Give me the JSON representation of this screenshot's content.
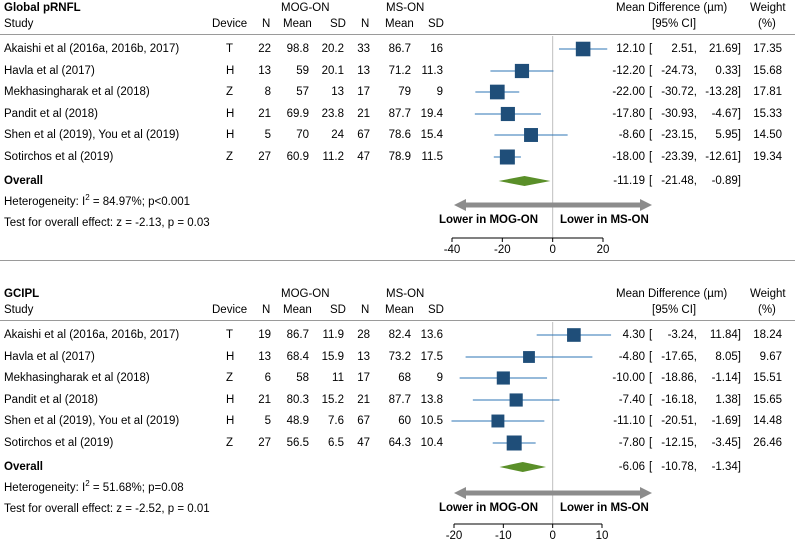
{
  "chart_data": [
    {
      "type": "forest",
      "title": "Global pRNFL",
      "group_a": "MOG-ON",
      "group_b": "MS-ON",
      "columns": {
        "study": "Study",
        "device": "Device",
        "n": "N",
        "mean": "Mean",
        "sd": "SD",
        "md_header": "Mean Difference (µm)",
        "ci_header": "[95% CI]",
        "weight_header": "Weight",
        "weight_unit": "(%)"
      },
      "studies": [
        {
          "study": "Akaishi et al (2016a, 2016b, 2017)",
          "device": "T",
          "n1": "22",
          "mean1": "98.8",
          "sd1": "20.2",
          "n2": "33",
          "mean2": "86.7",
          "sd2": "16",
          "md": 12.1,
          "lo": 2.51,
          "hi": 21.69,
          "md_text": "12.10",
          "lo_text": "2.51,",
          "hi_text": "21.69]",
          "weight": "17.35"
        },
        {
          "study": "Havla et al (2017)",
          "device": "H",
          "n1": "13",
          "mean1": "59",
          "sd1": "20.1",
          "n2": "13",
          "mean2": "71.2",
          "sd2": "11.3",
          "md": -12.2,
          "lo": -24.73,
          "hi": 0.33,
          "md_text": "-12.20",
          "lo_text": "-24.73,",
          "hi_text": "0.33]",
          "weight": "15.68"
        },
        {
          "study": "Mekhasingharak et al (2018)",
          "device": "Z",
          "n1": "8",
          "mean1": "57",
          "sd1": "13",
          "n2": "17",
          "mean2": "79",
          "sd2": "9",
          "md": -22.0,
          "lo": -30.72,
          "hi": -13.28,
          "md_text": "-22.00",
          "lo_text": "-30.72,",
          "hi_text": "-13.28]",
          "weight": "17.81"
        },
        {
          "study": "Pandit et al (2018)",
          "device": "H",
          "n1": "21",
          "mean1": "69.9",
          "sd1": "23.8",
          "n2": "21",
          "mean2": "87.7",
          "sd2": "19.4",
          "md": -17.8,
          "lo": -30.93,
          "hi": -4.67,
          "md_text": "-17.80",
          "lo_text": "-30.93,",
          "hi_text": "-4.67]",
          "weight": "15.33"
        },
        {
          "study": "Shen et al (2019), You et al (2019)",
          "device": "H",
          "n1": "5",
          "mean1": "70",
          "sd1": "24",
          "n2": "67",
          "mean2": "78.6",
          "sd2": "15.4",
          "md": -8.6,
          "lo": -23.15,
          "hi": 5.95,
          "md_text": "-8.60",
          "lo_text": "-23.15,",
          "hi_text": "5.95]",
          "weight": "14.50"
        },
        {
          "study": "Sotirchos et al (2019)",
          "device": "Z",
          "n1": "27",
          "mean1": "60.9",
          "sd1": "11.2",
          "n2": "47",
          "mean2": "78.9",
          "sd2": "11.5",
          "md": -18.0,
          "lo": -23.39,
          "hi": -12.61,
          "md_text": "-18.00",
          "lo_text": "-23.39,",
          "hi_text": "-12.61]",
          "weight": "19.34"
        }
      ],
      "overall": {
        "label": "Overall",
        "md": -11.19,
        "lo": -21.48,
        "hi": -0.89,
        "md_text": "-11.19",
        "lo_text": "-21.48,",
        "hi_text": "-0.89]"
      },
      "heterogeneity_prefix": "Heterogeneity: I",
      "heterogeneity_sup": "2",
      "heterogeneity_rest": " = 84.97%; p<0.001",
      "test_overall": "Test for overall effect: z = -2.13, p = 0.03",
      "arrow_left_label": "Lower in MOG-ON",
      "arrow_right_label": "Lower in MS-ON",
      "xlim": [
        -40,
        20
      ],
      "xticks": [
        -40,
        -20,
        0,
        20
      ]
    },
    {
      "type": "forest",
      "title": "GCIPL",
      "group_a": "MOG-ON",
      "group_b": "MS-ON",
      "columns": {
        "study": "Study",
        "device": "Device",
        "n": "N",
        "mean": "Mean",
        "sd": "SD",
        "md_header": "Mean Difference (µm)",
        "ci_header": "[95% CI]",
        "weight_header": "Weight",
        "weight_unit": "(%)"
      },
      "studies": [
        {
          "study": "Akaishi et al (2016a, 2016b, 2017)",
          "device": "T",
          "n1": "19",
          "mean1": "86.7",
          "sd1": "11.9",
          "n2": "28",
          "mean2": "82.4",
          "sd2": "13.6",
          "md": 4.3,
          "lo": -3.24,
          "hi": 11.84,
          "md_text": "4.30",
          "lo_text": "-3.24,",
          "hi_text": "11.84]",
          "weight": "18.24"
        },
        {
          "study": "Havla et al (2017)",
          "device": "H",
          "n1": "13",
          "mean1": "68.4",
          "sd1": "15.9",
          "n2": "13",
          "mean2": "73.2",
          "sd2": "17.5",
          "md": -4.8,
          "lo": -17.65,
          "hi": 8.05,
          "md_text": "-4.80",
          "lo_text": "-17.65,",
          "hi_text": "8.05]",
          "weight": "9.67"
        },
        {
          "study": "Mekhasingharak et al (2018)",
          "device": "Z",
          "n1": "6",
          "mean1": "58",
          "sd1": "11",
          "n2": "17",
          "mean2": "68",
          "sd2": "9",
          "md": -10.0,
          "lo": -18.86,
          "hi": -1.14,
          "md_text": "-10.00",
          "lo_text": "-18.86,",
          "hi_text": "-1.14]",
          "weight": "15.51"
        },
        {
          "study": "Pandit et al (2018)",
          "device": "H",
          "n1": "21",
          "mean1": "80.3",
          "sd1": "15.2",
          "n2": "21",
          "mean2": "87.7",
          "sd2": "13.8",
          "md": -7.4,
          "lo": -16.18,
          "hi": 1.38,
          "md_text": "-7.40",
          "lo_text": "-16.18,",
          "hi_text": "1.38]",
          "weight": "15.65"
        },
        {
          "study": "Shen et al (2019), You et al (2019)",
          "device": "H",
          "n1": "5",
          "mean1": "48.9",
          "sd1": "7.6",
          "n2": "67",
          "mean2": "60",
          "sd2": "10.5",
          "md": -11.1,
          "lo": -20.51,
          "hi": -1.69,
          "md_text": "-11.10",
          "lo_text": "-20.51,",
          "hi_text": "-1.69]",
          "weight": "14.48"
        },
        {
          "study": "Sotirchos et al (2019)",
          "device": "Z",
          "n1": "27",
          "mean1": "56.5",
          "sd1": "6.5",
          "n2": "47",
          "mean2": "64.3",
          "sd2": "10.4",
          "md": -7.8,
          "lo": -12.15,
          "hi": -3.45,
          "md_text": "-7.80",
          "lo_text": "-12.15,",
          "hi_text": "-3.45]",
          "weight": "26.46"
        }
      ],
      "overall": {
        "label": "Overall",
        "md": -6.06,
        "lo": -10.78,
        "hi": -1.34,
        "md_text": "-6.06",
        "lo_text": "-10.78,",
        "hi_text": "-1.34]"
      },
      "heterogeneity_prefix": "Heterogeneity: I",
      "heterogeneity_sup": "2",
      "heterogeneity_rest": " = 51.68%; p=0.08",
      "test_overall": "Test for overall effect: z = -2.52, p = 0.01",
      "arrow_left_label": "Lower in MOG-ON",
      "arrow_right_label": "Lower in MS-ON",
      "xlim": [
        -20,
        10
      ],
      "xticks": [
        -20,
        -10,
        0,
        10
      ]
    }
  ],
  "colors": {
    "marker": "#1f4e79",
    "ci_line": "#2e75b6",
    "diamond": "#5a8f29",
    "arrow": "#8c8c8c",
    "zero_line": "#bfbfbf"
  }
}
